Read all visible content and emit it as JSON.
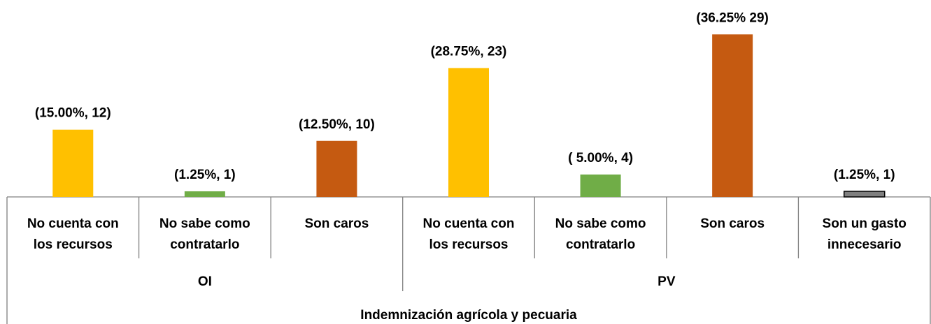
{
  "chart_data": {
    "type": "bar",
    "x_label": "Indemnización agrícola y pecuaria",
    "groups": [
      {
        "name": "OI",
        "categories": [
          "No cuenta con\nlos recursos",
          "No sabe como\ncontratarlo",
          "Son caros"
        ],
        "values": [
          15,
          1.25,
          12.5
        ],
        "value_labels": [
          "(15.00%, 12)",
          "(1.25%, 1)",
          "(12.50%, 10)"
        ],
        "colors": [
          "#ffc000",
          "#70ad47",
          "#c55a11"
        ]
      },
      {
        "name": "PV",
        "categories": [
          "No cuenta con\nlos recursos",
          "No sabe como\ncontratarlo",
          "Son caros",
          "Son un gasto\ninnecesario"
        ],
        "values": [
          28.75,
          5,
          36.25,
          1.25
        ],
        "value_labels": [
          "(28.75%, 23)",
          "( 5.00%, 4)",
          "(36.25% 29)",
          "(1.25%, 1)"
        ],
        "colors": [
          "#ffc000",
          "#70ad47",
          "#c55a11",
          "#7f7f7f"
        ]
      }
    ]
  }
}
